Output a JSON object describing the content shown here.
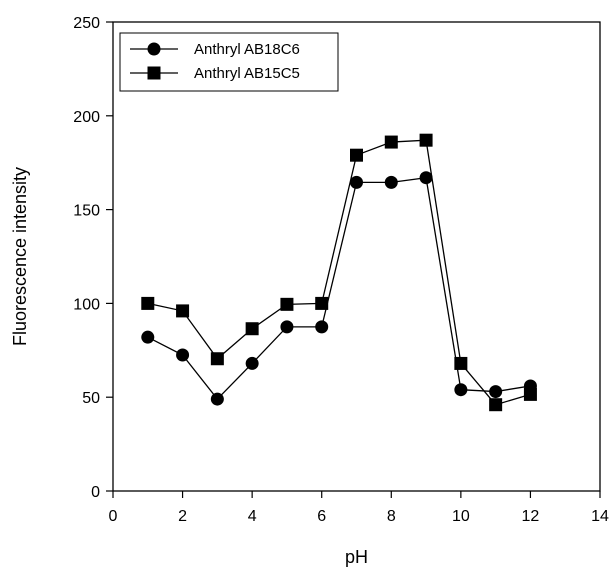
{
  "chart_data": {
    "type": "line",
    "title": "",
    "xlabel": "pH",
    "ylabel": "Fluorescence intensity",
    "xlim": [
      0,
      14
    ],
    "ylim": [
      0,
      250
    ],
    "xticks": [
      0,
      2,
      4,
      6,
      8,
      10,
      12,
      14
    ],
    "yticks": [
      0,
      50,
      100,
      150,
      200,
      250
    ],
    "grid": false,
    "legend_position": "top-left",
    "series": [
      {
        "name": "Anthryl AB18C6",
        "marker": "circle",
        "color": "#000000",
        "x": [
          1,
          2,
          3,
          4,
          5,
          6,
          7,
          8,
          9,
          10,
          11,
          12
        ],
        "y": [
          82,
          72.5,
          49,
          68,
          87.5,
          87.5,
          164.5,
          164.5,
          167,
          54,
          53,
          56
        ]
      },
      {
        "name": "Anthryl AB15C5",
        "marker": "square",
        "color": "#000000",
        "x": [
          1,
          2,
          3,
          4,
          5,
          6,
          7,
          8,
          9,
          10,
          11,
          12
        ],
        "y": [
          100,
          96,
          70.5,
          86.5,
          99.5,
          100,
          179,
          186,
          187,
          68,
          46,
          51.5
        ]
      }
    ]
  }
}
